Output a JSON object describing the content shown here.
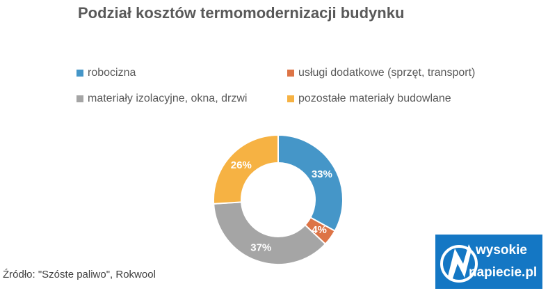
{
  "chart_data": {
    "type": "pie",
    "donut": true,
    "title": "Podział kosztów termomodernizacji budynku",
    "categories": [
      "robocizna",
      "usługi dodatkowe (sprzęt, transport)",
      "materiały izolacyjne, okna, drzwi",
      "pozostałe materiały budowlane"
    ],
    "values": [
      33,
      4,
      37,
      26
    ],
    "labels": [
      "33%",
      "4%",
      "37%",
      "26%"
    ],
    "colors": [
      "#4596c8",
      "#dd7446",
      "#a5a5a5",
      "#f6b243"
    ],
    "legend_position": "top"
  },
  "source": "Źródło: \"Szóste paliwo\", Rokwool",
  "logo": {
    "line1": "wysokie",
    "line2": "napiecie.pl"
  }
}
